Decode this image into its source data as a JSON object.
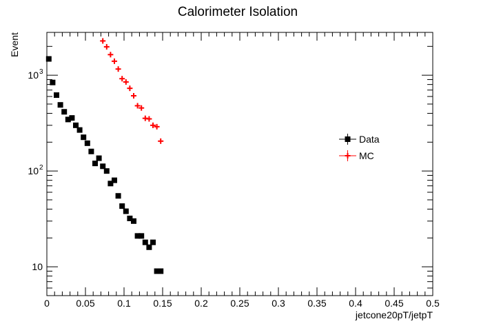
{
  "chart_data": {
    "type": "scatter",
    "title": "Calorimeter Isolation",
    "xlabel": "jetcone20pT/jetpT",
    "ylabel": "Event",
    "xlim": [
      0,
      0.5
    ],
    "ylim": [
      5,
      2800
    ],
    "yscale": "log",
    "x_ticks": [
      0,
      0.05,
      0.1,
      0.15,
      0.2,
      0.25,
      0.3,
      0.35,
      0.4,
      0.45,
      0.5
    ],
    "x_tick_labels": [
      "0",
      "0.05",
      "0.1",
      "0.15",
      "0.2",
      "0.25",
      "0.3",
      "0.35",
      "0.4",
      "0.45",
      "0.5"
    ],
    "y_ticks": [
      10,
      100,
      1000
    ],
    "y_tick_labels": [
      "10",
      "10",
      "10"
    ],
    "y_tick_exponents": [
      "",
      "2",
      "3"
    ],
    "legend_position": "right",
    "grid": false,
    "series": [
      {
        "name": "Data",
        "marker": "square",
        "color": "#000000",
        "x": [
          0.0025,
          0.0075,
          0.0125,
          0.0175,
          0.0225,
          0.0275,
          0.0325,
          0.0375,
          0.0425,
          0.0475,
          0.0525,
          0.0575,
          0.0625,
          0.0675,
          0.0725,
          0.0775,
          0.0825,
          0.0875,
          0.0925,
          0.0975,
          0.1025,
          0.1075,
          0.1125,
          0.1175,
          0.1225,
          0.1275,
          0.1325,
          0.1375,
          0.1425,
          0.1475
        ],
        "y": [
          1480,
          840,
          620,
          490,
          415,
          345,
          358,
          300,
          268,
          225,
          195,
          160,
          120,
          136,
          112,
          100,
          74,
          80,
          55,
          43,
          38,
          32,
          30,
          21,
          21,
          18,
          16,
          18,
          9,
          9
        ]
      },
      {
        "name": "MC",
        "marker": "cross",
        "color": "#ff0000",
        "x": [
          0.0725,
          0.0775,
          0.0825,
          0.0875,
          0.0925,
          0.0975,
          0.1025,
          0.1075,
          0.1125,
          0.1175,
          0.1225,
          0.1275,
          0.1325,
          0.1375,
          0.1425,
          0.1475
        ],
        "y": [
          2280,
          1980,
          1640,
          1400,
          1160,
          920,
          850,
          730,
          610,
          480,
          455,
          355,
          350,
          300,
          290,
          205
        ]
      }
    ]
  }
}
